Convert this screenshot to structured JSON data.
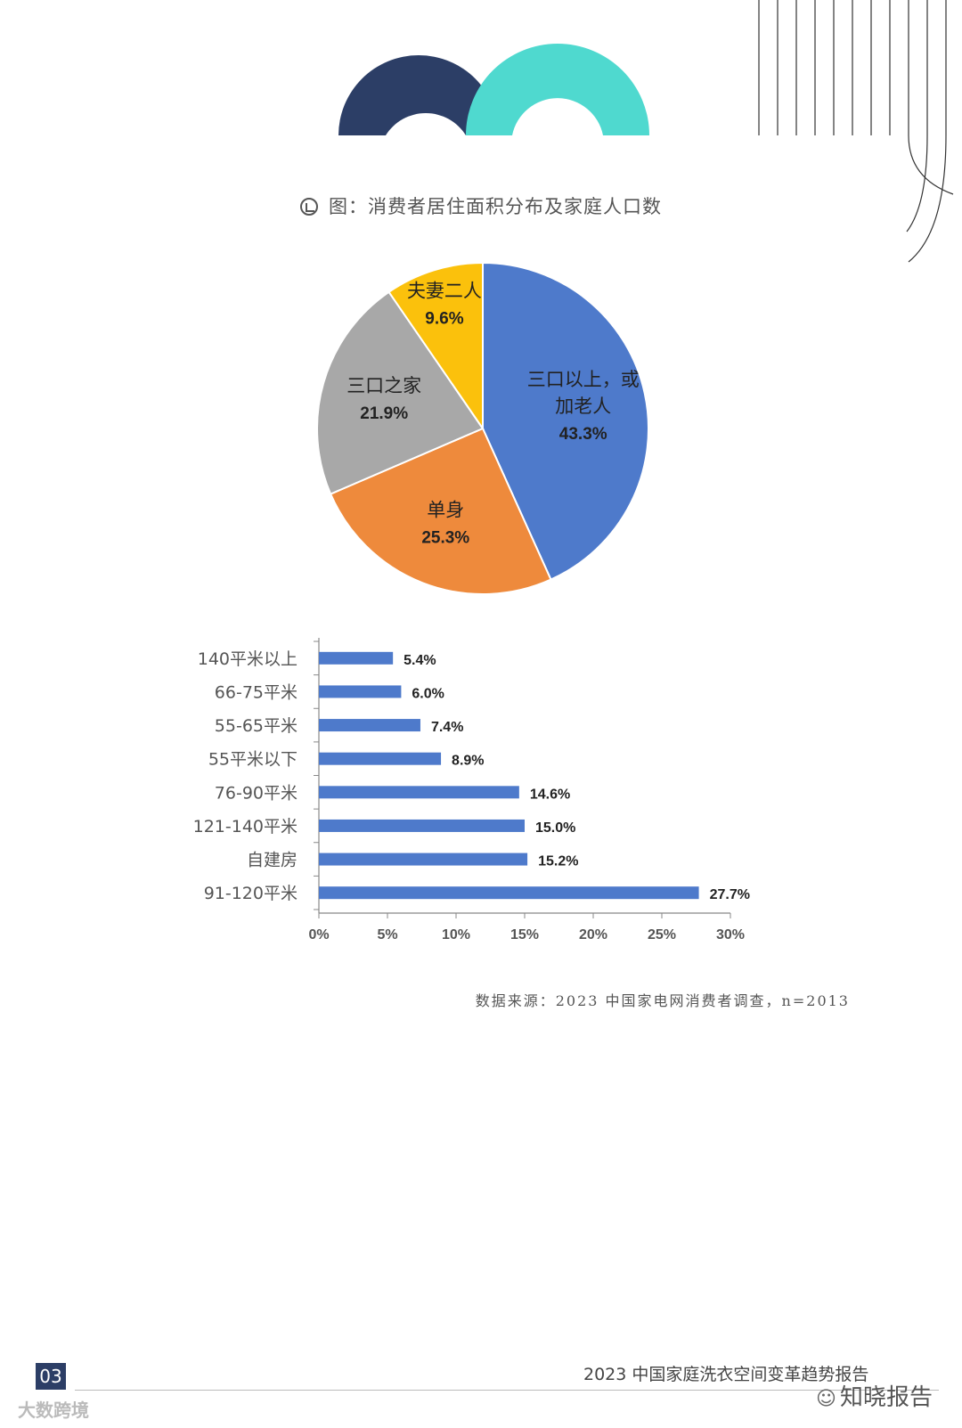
{
  "caption": {
    "text": "图：消费者居住面积分布及家庭人口数",
    "icon": "chart-magnifier-icon"
  },
  "chart_data": [
    {
      "type": "pie",
      "slices": [
        {
          "label_lines": [
            "三口以上，或",
            "加老人"
          ],
          "value": 43.3,
          "value_label": "43.3%",
          "color": "#4e7acb"
        },
        {
          "label_lines": [
            "单身"
          ],
          "value": 25.3,
          "value_label": "25.3%",
          "color": "#ee8a3c"
        },
        {
          "label_lines": [
            "三口之家"
          ],
          "value": 21.9,
          "value_label": "21.9%",
          "color": "#a8a8a8"
        },
        {
          "label_lines": [
            "夫妻二人"
          ],
          "value": 9.6,
          "value_label": "9.6%",
          "color": "#fbc10c"
        }
      ]
    },
    {
      "type": "bar",
      "orientation": "horizontal",
      "categories": [
        "140平米以上",
        "66-75平米",
        "55-65平米",
        "55平米以下",
        "76-90平米",
        "121-140平米",
        "自建房",
        "91-120平米"
      ],
      "values": [
        5.4,
        6.0,
        7.4,
        8.9,
        14.6,
        15.0,
        15.2,
        27.7
      ],
      "value_labels": [
        "5.4%",
        "6.0%",
        "7.4%",
        "8.9%",
        "14.6%",
        "15.0%",
        "15.2%",
        "27.7%"
      ],
      "xlim": [
        0,
        30
      ],
      "xticks": [
        0,
        5,
        10,
        15,
        20,
        25,
        30
      ],
      "xtick_labels": [
        "0%",
        "5%",
        "10%",
        "15%",
        "20%",
        "25%",
        "30%"
      ],
      "bar_color": "#4e7acb"
    }
  ],
  "source_note": "数据来源：2023 中国家电网消费者调查，n=2013",
  "footer": {
    "page_number": "03",
    "title": "2023 中国家庭洗衣空间变革趋势报告",
    "source_brand": "大数跨境",
    "watermark": "知晓报告",
    "watermark_icon": "wechat-icon"
  },
  "colors": {
    "navy": "#2c3e66",
    "teal": "#4fd9cf"
  }
}
